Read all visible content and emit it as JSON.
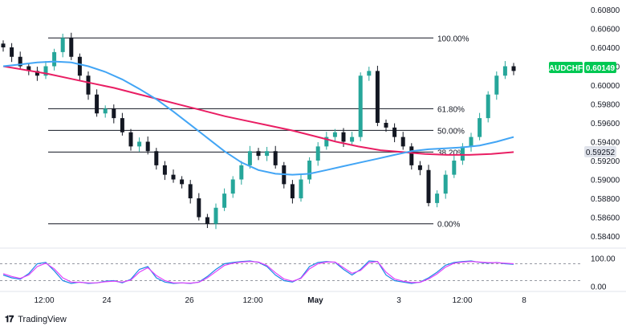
{
  "footer": {
    "brand": "TradingView",
    "logo_icon": "tradingview-logo-icon"
  },
  "colors": {
    "up": "#26a69a",
    "down": "#131722",
    "ma_fast": "#42a5f5",
    "ma_slow": "#e91e63",
    "fib": "#131722",
    "symbol_label_bg": "#00c853",
    "last_close_bg": "#e0e3eb",
    "rsi_fast": "#1e88e5",
    "rsi_slow": "#e040fb",
    "rsi_band": "#9598a1"
  },
  "chart_data": [
    {
      "type": "candlestick",
      "symbol": "AUDCHF",
      "last_price_label": "0.60149",
      "secondary_price_label": "0.59252",
      "ylim": [
        0.584,
        0.608
      ],
      "y_ticks": [
        "0.60800",
        "0.60600",
        "0.60400",
        "0.60200",
        "0.60000",
        "0.59800",
        "0.59600",
        "0.59400",
        "0.59200",
        "0.59000",
        "0.58800",
        "0.58600",
        "0.58400"
      ],
      "x_ticks": [
        "12:00",
        "24",
        "26",
        "12:00",
        "May",
        "3",
        "12:00",
        "8"
      ],
      "fib_levels": [
        {
          "label": "100.00%",
          "price": 0.605
        },
        {
          "label": "61.80%",
          "price": 0.5975
        },
        {
          "label": "50.00%",
          "price": 0.5952
        },
        {
          "label": "38.20%",
          "price": 0.5929
        },
        {
          "label": "0.00%",
          "price": 0.5853
        }
      ],
      "close": [
        0.604,
        0.603,
        0.602,
        0.6015,
        0.601,
        0.602,
        0.6035,
        0.605,
        0.603,
        0.601,
        0.599,
        0.597,
        0.5975,
        0.5965,
        0.595,
        0.5935,
        0.594,
        0.593,
        0.5915,
        0.5905,
        0.59,
        0.5895,
        0.588,
        0.586,
        0.5853,
        0.587,
        0.5885,
        0.59,
        0.5915,
        0.593,
        0.5925,
        0.593,
        0.5915,
        0.5895,
        0.588,
        0.59,
        0.592,
        0.5935,
        0.5945,
        0.595,
        0.594,
        0.5945,
        0.601,
        0.6015,
        0.596,
        0.5955,
        0.5945,
        0.5935,
        0.5915,
        0.591,
        0.5875,
        0.5885,
        0.5905,
        0.592,
        0.5935,
        0.5945,
        0.5965,
        0.599,
        0.601,
        0.602,
        0.6015
      ],
      "ma_fast": [
        0.602,
        0.6022,
        0.6024,
        0.6025,
        0.6024,
        0.602,
        0.6014,
        0.6006,
        0.5996,
        0.5985,
        0.5972,
        0.5958,
        0.5944,
        0.593,
        0.5918,
        0.591,
        0.5906,
        0.5905,
        0.5906,
        0.591,
        0.5914,
        0.5918,
        0.5922,
        0.5926,
        0.593,
        0.5932,
        0.5933,
        0.5934,
        0.5936,
        0.594,
        0.5945
      ],
      "ma_slow": [
        0.602,
        0.6016,
        0.6012,
        0.6007,
        0.6002,
        0.5997,
        0.5991,
        0.5985,
        0.5979,
        0.5973,
        0.5967,
        0.5962,
        0.5957,
        0.5952,
        0.5946,
        0.594,
        0.5935,
        0.5931,
        0.5929,
        0.5927,
        0.5926,
        0.5926,
        0.5927,
        0.5929
      ],
      "series": [
        {
          "name": "AUDCHF"
        }
      ]
    },
    {
      "type": "line",
      "panel": "oscillator",
      "ylim": [
        -10,
        110
      ],
      "y_ticks": [
        "100.00",
        "0.00"
      ],
      "bands": [
        80,
        20
      ],
      "series": [
        {
          "values": [
            40,
            30,
            25,
            45,
            80,
            85,
            55,
            20,
            10,
            15,
            10,
            12,
            18,
            20,
            12,
            25,
            60,
            70,
            30,
            15,
            10,
            12,
            10,
            15,
            35,
            60,
            80,
            85,
            88,
            90,
            85,
            70,
            40,
            20,
            15,
            30,
            70,
            85,
            88,
            85,
            60,
            40,
            60,
            90,
            88,
            40,
            20,
            15,
            10,
            15,
            30,
            50,
            75,
            85,
            88,
            90,
            85,
            82,
            85,
            80,
            78
          ]
        },
        {
          "values": [
            45,
            35,
            28,
            40,
            70,
            82,
            62,
            30,
            15,
            14,
            12,
            12,
            16,
            18,
            15,
            22,
            50,
            66,
            38,
            20,
            12,
            12,
            11,
            14,
            30,
            52,
            74,
            82,
            86,
            88,
            86,
            74,
            48,
            26,
            18,
            28,
            62,
            80,
            86,
            86,
            66,
            46,
            56,
            84,
            88,
            50,
            26,
            18,
            13,
            14,
            26,
            44,
            68,
            82,
            86,
            88,
            86,
            84,
            84,
            82,
            80
          ]
        }
      ]
    }
  ]
}
